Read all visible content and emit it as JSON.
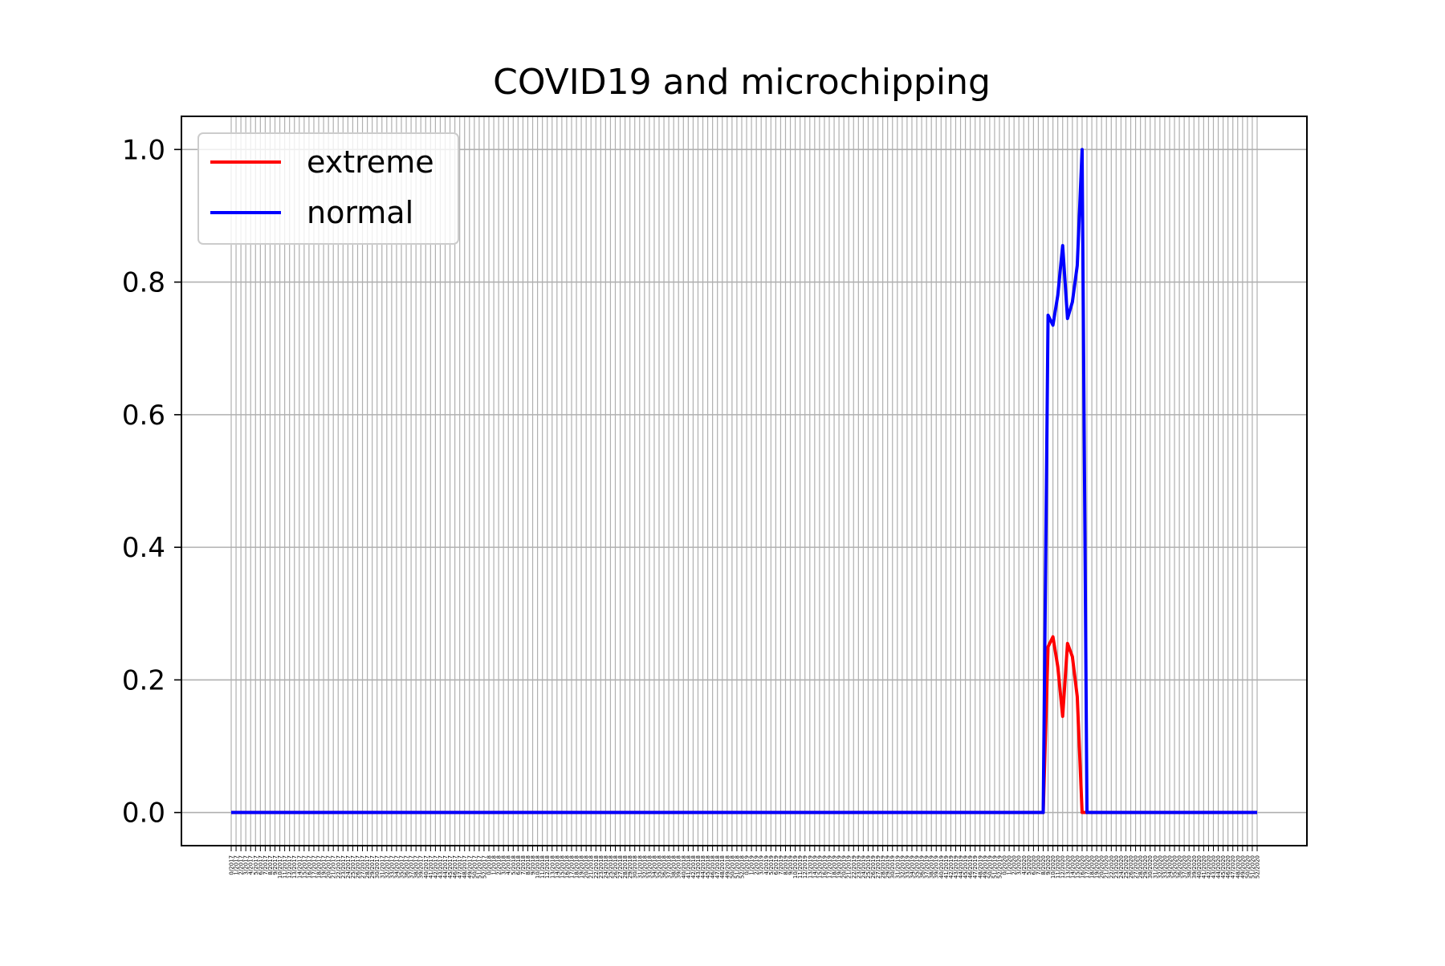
{
  "chart_data": {
    "type": "line",
    "title": "COVID19 and microchipping",
    "xlabel": "",
    "ylabel": "",
    "ylim": [
      -0.05,
      1.05
    ],
    "yticks": [
      "0.0",
      "0.2",
      "0.4",
      "0.6",
      "0.8",
      "1.0"
    ],
    "grid": true,
    "legend_position": "top-left",
    "x_tick_format": "week/year",
    "x_range": {
      "start_week": 0,
      "start_year": 2017,
      "end_week": 52,
      "end_year": 2020,
      "weeks_per_year": 53
    },
    "series": [
      {
        "name": "extreme",
        "color": "#ff0000",
        "points": [
          {
            "x": "0/2017",
            "y": 0.0
          },
          {
            "x": "8/2020",
            "y": 0.0
          },
          {
            "x": "9/2020",
            "y": 0.25
          },
          {
            "x": "10/2020",
            "y": 0.265
          },
          {
            "x": "11/2020",
            "y": 0.22
          },
          {
            "x": "12/2020",
            "y": 0.145
          },
          {
            "x": "13/2020",
            "y": 0.255
          },
          {
            "x": "14/2020",
            "y": 0.235
          },
          {
            "x": "15/2020",
            "y": 0.175
          },
          {
            "x": "16/2020",
            "y": 0.0
          },
          {
            "x": "52/2020",
            "y": 0.0
          }
        ]
      },
      {
        "name": "normal",
        "color": "#0000ff",
        "points": [
          {
            "x": "0/2017",
            "y": 0.0
          },
          {
            "x": "8/2020",
            "y": 0.0
          },
          {
            "x": "9/2020",
            "y": 0.75
          },
          {
            "x": "10/2020",
            "y": 0.735
          },
          {
            "x": "11/2020",
            "y": 0.78
          },
          {
            "x": "12/2020",
            "y": 0.855
          },
          {
            "x": "13/2020",
            "y": 0.745
          },
          {
            "x": "14/2020",
            "y": 0.77
          },
          {
            "x": "15/2020",
            "y": 0.825
          },
          {
            "x": "16/2020",
            "y": 1.0
          },
          {
            "x": "17/2020",
            "y": 0.0
          },
          {
            "x": "52/2020",
            "y": 0.0
          }
        ]
      }
    ]
  }
}
